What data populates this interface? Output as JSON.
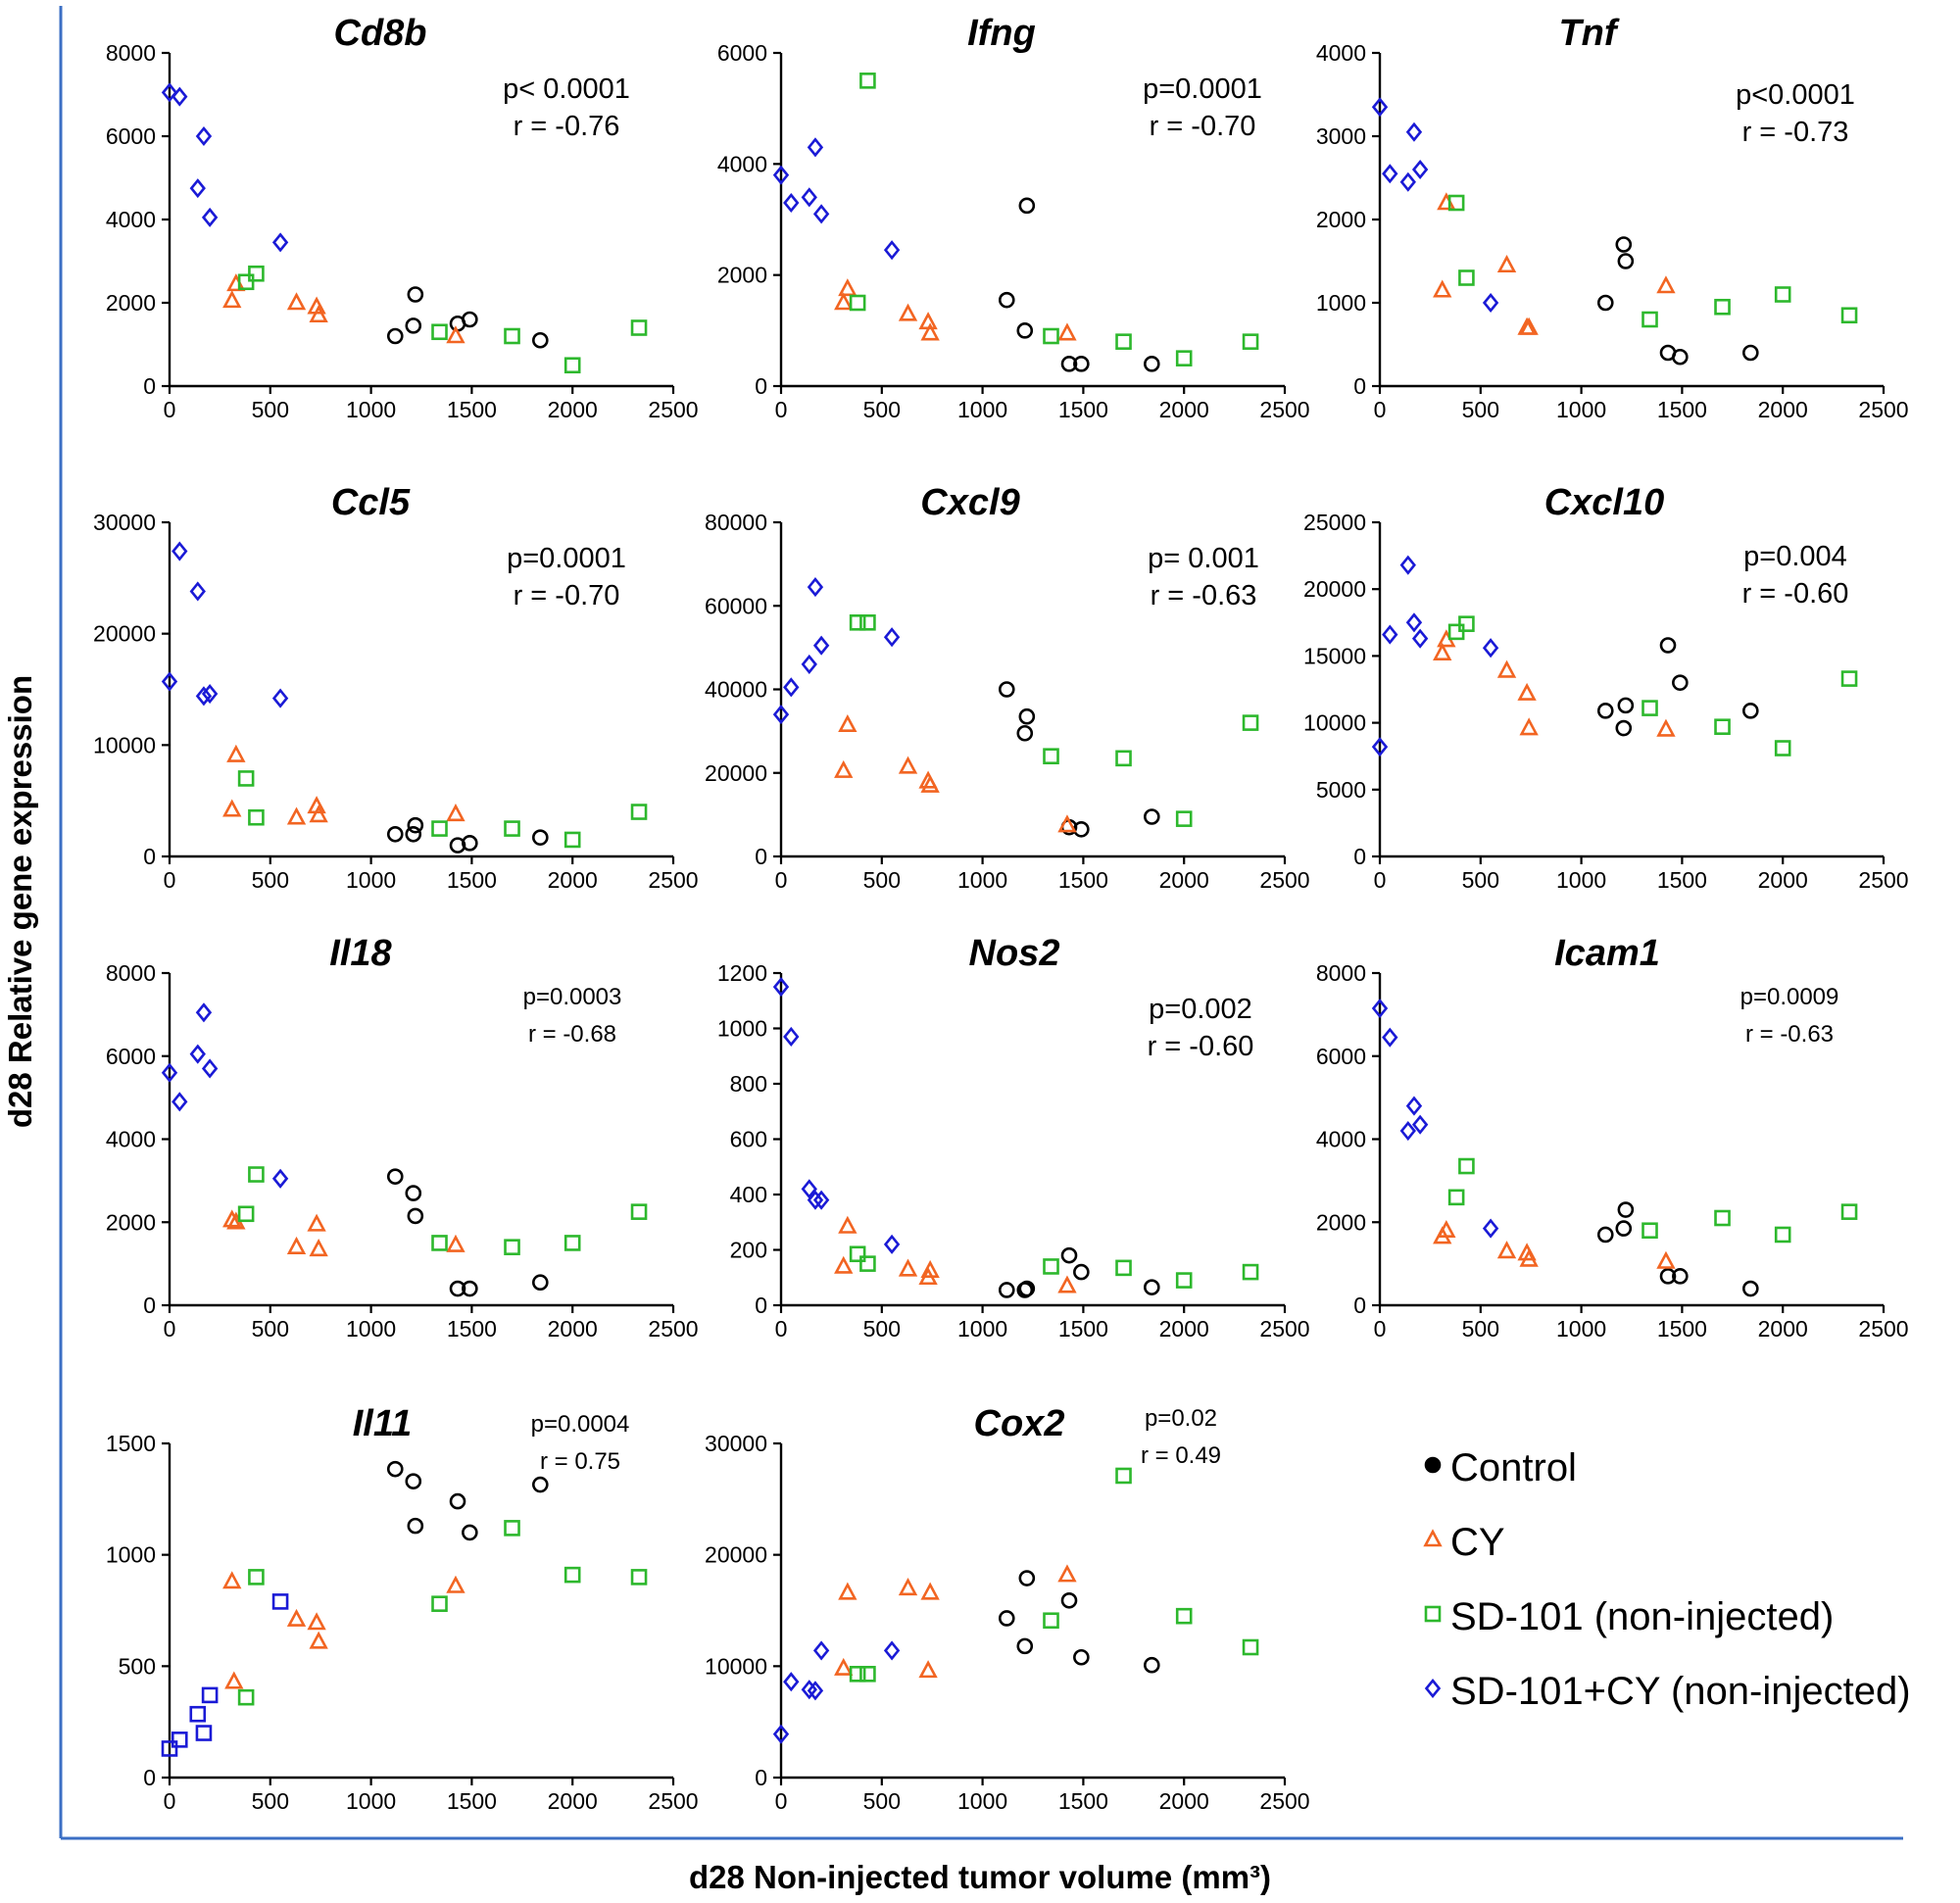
{
  "figure": {
    "ylabel": "d28 Relative gene expression",
    "xlabel": "d28 Non-injected tumor volume (mm³)"
  },
  "legend": [
    {
      "label": "Control",
      "marker": "filled-circle",
      "color": "#000000"
    },
    {
      "label": "CY",
      "marker": "triangle",
      "color": "#f26522"
    },
    {
      "label": "SD-101 (non-injected)",
      "marker": "square",
      "color": "#2db82d"
    },
    {
      "label": "SD-101+CY (non-injected)",
      "marker": "diamond",
      "color": "#1a1ad6"
    }
  ],
  "groups": {
    "Control": {
      "marker": "circle",
      "color": "#000000"
    },
    "CY": {
      "marker": "triangle",
      "color": "#f26522"
    },
    "SD": {
      "marker": "square",
      "color": "#2db82d"
    },
    "SDCY": {
      "marker": "diamond",
      "color": "#1a1ad6"
    },
    "SDCY_sq": {
      "marker": "square",
      "color": "#1a1ad6"
    }
  },
  "chart_data": [
    {
      "type": "scatter",
      "title": "Cd8b",
      "stat_p": "p< 0.0001",
      "stat_r": "r = -0.76",
      "xlim": [
        0,
        2500
      ],
      "ylim": [
        0,
        8000
      ],
      "xticks": [
        "0",
        "500",
        "1000",
        "1500",
        "2000",
        "2500"
      ],
      "yticks": [
        "0",
        "2000",
        "4000",
        "6000",
        "8000"
      ],
      "series": [
        {
          "group": "Control",
          "x": [
            1120,
            1210,
            1220,
            1430,
            1490,
            1840
          ],
          "y": [
            1200,
            1450,
            2200,
            1500,
            1600,
            1100
          ]
        },
        {
          "group": "CY",
          "x": [
            310,
            330,
            630,
            730,
            740,
            1420
          ],
          "y": [
            2050,
            2450,
            2000,
            1900,
            1700,
            1200
          ]
        },
        {
          "group": "SD",
          "x": [
            380,
            430,
            1340,
            1700,
            2000,
            2330
          ],
          "y": [
            2500,
            2700,
            1300,
            1200,
            500,
            1400
          ]
        },
        {
          "group": "SDCY",
          "x": [
            0,
            50,
            140,
            170,
            200,
            550
          ],
          "y": [
            7050,
            6950,
            4750,
            6000,
            4050,
            3450
          ]
        }
      ]
    },
    {
      "type": "scatter",
      "title": "Ifng",
      "stat_p": "p=0.0001",
      "stat_r": "r = -0.70",
      "xlim": [
        0,
        2500
      ],
      "ylim": [
        0,
        6000
      ],
      "xticks": [
        "0",
        "500",
        "1000",
        "1500",
        "2000",
        "2500"
      ],
      "yticks": [
        "0",
        "2000",
        "4000",
        "6000"
      ],
      "series": [
        {
          "group": "Control",
          "x": [
            1120,
            1210,
            1220,
            1430,
            1490,
            1840
          ],
          "y": [
            1550,
            1000,
            3250,
            400,
            400,
            400
          ]
        },
        {
          "group": "CY",
          "x": [
            310,
            330,
            630,
            730,
            740,
            1420
          ],
          "y": [
            1500,
            1750,
            1300,
            1150,
            950,
            950
          ]
        },
        {
          "group": "SD",
          "x": [
            380,
            430,
            1340,
            1700,
            2000,
            2330
          ],
          "y": [
            1500,
            5500,
            900,
            800,
            500,
            800
          ]
        },
        {
          "group": "SDCY",
          "x": [
            0,
            50,
            140,
            170,
            200,
            550
          ],
          "y": [
            3800,
            3300,
            3400,
            4300,
            3100,
            2450
          ]
        }
      ]
    },
    {
      "type": "scatter",
      "title": "Tnf",
      "stat_p": "p<0.0001",
      "stat_r": "r = -0.73",
      "xlim": [
        0,
        2500
      ],
      "ylim": [
        0,
        4000
      ],
      "xticks": [
        "0",
        "500",
        "1000",
        "1500",
        "2000",
        "2500"
      ],
      "yticks": [
        "0",
        "1000",
        "2000",
        "3000",
        "4000"
      ],
      "series": [
        {
          "group": "Control",
          "x": [
            1120,
            1210,
            1220,
            1430,
            1490,
            1840
          ],
          "y": [
            1000,
            1700,
            1500,
            400,
            350,
            400
          ]
        },
        {
          "group": "CY",
          "x": [
            310,
            330,
            630,
            730,
            740,
            1420
          ],
          "y": [
            1150,
            2200,
            1450,
            700,
            700,
            1200
          ]
        },
        {
          "group": "SD",
          "x": [
            380,
            430,
            1340,
            1700,
            2000,
            2330
          ],
          "y": [
            2200,
            1300,
            800,
            950,
            1100,
            850
          ]
        },
        {
          "group": "SDCY",
          "x": [
            0,
            50,
            140,
            170,
            200,
            550
          ],
          "y": [
            3350,
            2550,
            2450,
            3050,
            2600,
            1000
          ]
        }
      ]
    },
    {
      "type": "scatter",
      "title": "Ccl5",
      "stat_p": "p=0.0001",
      "stat_r": "r = -0.70",
      "xlim": [
        0,
        2500
      ],
      "ylim": [
        0,
        30000
      ],
      "xticks": [
        "0",
        "500",
        "1000",
        "1500",
        "2000",
        "2500"
      ],
      "yticks": [
        "0",
        "10000",
        "20000",
        "30000"
      ],
      "series": [
        {
          "group": "Control",
          "x": [
            1120,
            1210,
            1220,
            1430,
            1490,
            1840
          ],
          "y": [
            2000,
            2000,
            2800,
            1000,
            1200,
            1700
          ]
        },
        {
          "group": "CY",
          "x": [
            310,
            330,
            630,
            730,
            740,
            1420
          ],
          "y": [
            4200,
            9100,
            3500,
            4500,
            3700,
            3800
          ]
        },
        {
          "group": "SD",
          "x": [
            380,
            430,
            1340,
            1700,
            2000,
            2330
          ],
          "y": [
            7000,
            3500,
            2500,
            2500,
            1500,
            4000
          ]
        },
        {
          "group": "SDCY",
          "x": [
            0,
            50,
            140,
            170,
            200,
            550
          ],
          "y": [
            15700,
            27400,
            23800,
            14400,
            14600,
            14200
          ]
        }
      ]
    },
    {
      "type": "scatter",
      "title": "Cxcl9",
      "stat_p": "p= 0.001",
      "stat_r": "r = -0.63",
      "xlim": [
        0,
        2500
      ],
      "ylim": [
        0,
        80000
      ],
      "xticks": [
        "0",
        "500",
        "1000",
        "1500",
        "2000",
        "2500"
      ],
      "yticks": [
        "0",
        "20000",
        "40000",
        "60000",
        "80000"
      ],
      "series": [
        {
          "group": "Control",
          "x": [
            1120,
            1210,
            1220,
            1430,
            1490,
            1840
          ],
          "y": [
            40000,
            29500,
            33500,
            7000,
            6500,
            9500
          ]
        },
        {
          "group": "CY",
          "x": [
            310,
            330,
            630,
            730,
            740,
            1420
          ],
          "y": [
            20500,
            31500,
            21500,
            18000,
            17000,
            7500
          ]
        },
        {
          "group": "SD",
          "x": [
            380,
            430,
            1340,
            1700,
            2000,
            2330
          ],
          "y": [
            56000,
            56000,
            24000,
            23500,
            9000,
            32000
          ]
        },
        {
          "group": "SDCY",
          "x": [
            0,
            50,
            140,
            170,
            200,
            550
          ],
          "y": [
            34000,
            40500,
            46000,
            64500,
            50500,
            52500
          ]
        }
      ]
    },
    {
      "type": "scatter",
      "title": "Cxcl10",
      "stat_p": "p=0.004",
      "stat_r": "r = -0.60",
      "xlim": [
        0,
        2500
      ],
      "ylim": [
        0,
        25000
      ],
      "xticks": [
        "0",
        "500",
        "1000",
        "1500",
        "2000",
        "2500"
      ],
      "yticks": [
        "0",
        "5000",
        "10000",
        "15000",
        "20000",
        "25000"
      ],
      "series": [
        {
          "group": "Control",
          "x": [
            1120,
            1210,
            1220,
            1430,
            1490,
            1840
          ],
          "y": [
            10900,
            9600,
            11300,
            15800,
            13000,
            10900
          ]
        },
        {
          "group": "CY",
          "x": [
            310,
            330,
            630,
            730,
            740,
            1420
          ],
          "y": [
            15200,
            16200,
            13900,
            12200,
            9600,
            9500
          ]
        },
        {
          "group": "SD",
          "x": [
            380,
            430,
            1340,
            1700,
            2000,
            2330
          ],
          "y": [
            16800,
            17400,
            11100,
            9700,
            8100,
            13300
          ]
        },
        {
          "group": "SDCY",
          "x": [
            0,
            50,
            140,
            170,
            200,
            550
          ],
          "y": [
            8200,
            16600,
            21800,
            17500,
            16300,
            15600
          ]
        }
      ]
    },
    {
      "type": "scatter",
      "title": "Il18",
      "stat_p": "p=0.0003",
      "stat_r": "r = -0.68",
      "xlim": [
        0,
        2500
      ],
      "ylim": [
        0,
        8000
      ],
      "xticks": [
        "0",
        "500",
        "1000",
        "1500",
        "2000",
        "2500"
      ],
      "yticks": [
        "0",
        "2000",
        "4000",
        "6000",
        "8000"
      ],
      "series": [
        {
          "group": "Control",
          "x": [
            1120,
            1210,
            1220,
            1430,
            1490,
            1840
          ],
          "y": [
            3100,
            2700,
            2150,
            400,
            400,
            550
          ]
        },
        {
          "group": "CY",
          "x": [
            310,
            330,
            630,
            730,
            740,
            1420
          ],
          "y": [
            2050,
            2000,
            1400,
            1950,
            1350,
            1450
          ]
        },
        {
          "group": "SD",
          "x": [
            380,
            430,
            1340,
            1700,
            2000,
            2330
          ],
          "y": [
            2200,
            3150,
            1500,
            1400,
            1500,
            2250
          ]
        },
        {
          "group": "SDCY",
          "x": [
            0,
            50,
            140,
            170,
            200,
            550
          ],
          "y": [
            5600,
            4900,
            6050,
            7050,
            5700,
            3050
          ]
        }
      ]
    },
    {
      "type": "scatter",
      "title": "Nos2",
      "stat_p": "p=0.002",
      "stat_r": "r = -0.60",
      "xlim": [
        0,
        2500
      ],
      "ylim": [
        0,
        1200
      ],
      "xticks": [
        "0",
        "500",
        "1000",
        "1500",
        "2000",
        "2500"
      ],
      "yticks": [
        "0",
        "200",
        "400",
        "600",
        "800",
        "1000",
        "1200"
      ],
      "series": [
        {
          "group": "Control",
          "x": [
            1120,
            1210,
            1220,
            1430,
            1490,
            1840
          ],
          "y": [
            55,
            55,
            60,
            180,
            120,
            65
          ]
        },
        {
          "group": "CY",
          "x": [
            310,
            330,
            630,
            730,
            740,
            1420
          ],
          "y": [
            140,
            285,
            130,
            100,
            125,
            70
          ]
        },
        {
          "group": "SD",
          "x": [
            380,
            430,
            1340,
            1700,
            2000,
            2330
          ],
          "y": [
            185,
            150,
            140,
            135,
            90,
            120
          ]
        },
        {
          "group": "SDCY",
          "x": [
            0,
            50,
            140,
            170,
            200,
            550
          ],
          "y": [
            1150,
            970,
            420,
            380,
            380,
            220
          ]
        }
      ]
    },
    {
      "type": "scatter",
      "title": "Icam1",
      "stat_p": "p=0.0009",
      "stat_r": "r = -0.63",
      "xlim": [
        0,
        2500
      ],
      "ylim": [
        0,
        8000
      ],
      "xticks": [
        "0",
        "500",
        "1000",
        "1500",
        "2000",
        "2500"
      ],
      "yticks": [
        "0",
        "2000",
        "4000",
        "6000",
        "8000"
      ],
      "series": [
        {
          "group": "Control",
          "x": [
            1120,
            1210,
            1220,
            1430,
            1490,
            1840
          ],
          "y": [
            1700,
            1850,
            2300,
            700,
            700,
            400
          ]
        },
        {
          "group": "CY",
          "x": [
            310,
            330,
            630,
            730,
            740,
            1420
          ],
          "y": [
            1650,
            1800,
            1300,
            1250,
            1100,
            1050
          ]
        },
        {
          "group": "SD",
          "x": [
            380,
            430,
            1340,
            1700,
            2000,
            2330
          ],
          "y": [
            2600,
            3350,
            1800,
            2100,
            1700,
            2250
          ]
        },
        {
          "group": "SDCY",
          "x": [
            0,
            50,
            140,
            170,
            200,
            550
          ],
          "y": [
            7150,
            6450,
            4200,
            4800,
            4350,
            1850
          ]
        }
      ]
    },
    {
      "type": "scatter",
      "title": "Il11",
      "stat_p": "p=0.0004",
      "stat_r": "r = 0.75",
      "xlim": [
        0,
        2500
      ],
      "ylim": [
        0,
        1500
      ],
      "xticks": [
        "0",
        "500",
        "1000",
        "1500",
        "2000",
        "2500"
      ],
      "yticks": [
        "0",
        "500",
        "1000",
        "1500"
      ],
      "series": [
        {
          "group": "Control",
          "x": [
            1120,
            1210,
            1220,
            1430,
            1490,
            1840
          ],
          "y": [
            1385,
            1330,
            1130,
            1240,
            1100,
            1315
          ]
        },
        {
          "group": "CY",
          "x": [
            310,
            320,
            630,
            730,
            740,
            1420
          ],
          "y": [
            880,
            430,
            710,
            695,
            610,
            860
          ]
        },
        {
          "group": "SD",
          "x": [
            380,
            430,
            1340,
            1700,
            2000,
            2330
          ],
          "y": [
            360,
            900,
            780,
            1120,
            910,
            900
          ]
        },
        {
          "group": "SDCY_sq",
          "x": [
            0,
            50,
            140,
            170,
            200,
            550
          ],
          "y": [
            130,
            170,
            285,
            200,
            370,
            790
          ]
        }
      ]
    },
    {
      "type": "scatter",
      "title": "Cox2",
      "stat_p": "p=0.02",
      "stat_r": "r = 0.49",
      "xlim": [
        0,
        2500
      ],
      "ylim": [
        0,
        30000
      ],
      "xticks": [
        "0",
        "500",
        "1000",
        "1500",
        "2000",
        "2500"
      ],
      "yticks": [
        "0",
        "10000",
        "20000",
        "30000"
      ],
      "series": [
        {
          "group": "Control",
          "x": [
            1120,
            1210,
            1220,
            1430,
            1490,
            1840
          ],
          "y": [
            14300,
            11800,
            17900,
            15900,
            10800,
            10100
          ]
        },
        {
          "group": "CY",
          "x": [
            310,
            330,
            630,
            730,
            740,
            1420
          ],
          "y": [
            9800,
            16600,
            17000,
            9600,
            16600,
            18200
          ]
        },
        {
          "group": "SD",
          "x": [
            380,
            430,
            1340,
            1700,
            2000,
            2330
          ],
          "y": [
            9300,
            9300,
            14100,
            27100,
            14500,
            11700
          ]
        },
        {
          "group": "SDCY",
          "x": [
            0,
            50,
            140,
            170,
            200,
            550
          ],
          "y": [
            3900,
            8600,
            7900,
            7800,
            11400,
            11400
          ]
        }
      ]
    }
  ]
}
